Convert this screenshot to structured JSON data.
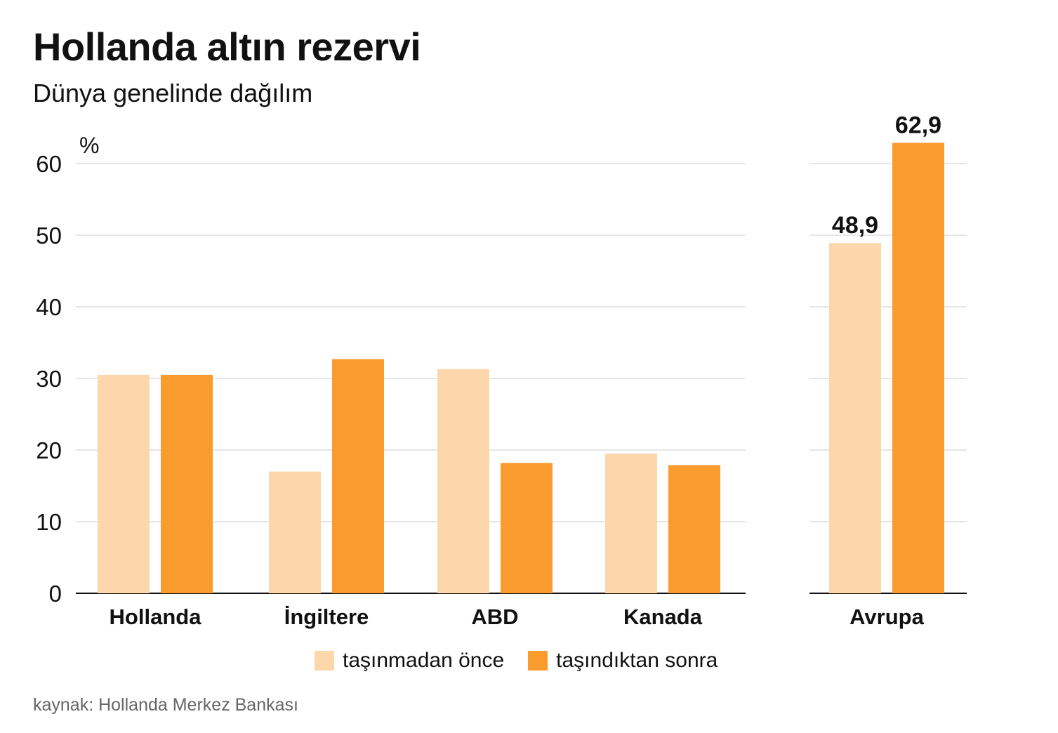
{
  "title": "Hollanda altın rezervi",
  "subtitle": "Dünya genelinde dağılım",
  "source": "kaynak: Hollanda Merkez Bankası",
  "colors": {
    "before": "#FDD6AC",
    "after": "#FA9B2E",
    "grid": "#dddddd",
    "axis": "#111111"
  },
  "chart_data": [
    {
      "type": "bar",
      "ylabel": "%",
      "ylim": [
        0,
        60
      ],
      "yticks": [
        0,
        10,
        20,
        30,
        40,
        50,
        60
      ],
      "grid": true,
      "legend_position": "bottom",
      "categories": [
        "Hollanda",
        "İngiltere",
        "ABD",
        "Kanada"
      ],
      "series": [
        {
          "name": "taşınmadan önce",
          "values": [
            30.5,
            17,
            31.3,
            19.5
          ]
        },
        {
          "name": "taşındıktan sonra",
          "values": [
            30.5,
            32.7,
            18.2,
            17.9
          ]
        }
      ]
    },
    {
      "type": "bar",
      "ylim": [
        0,
        60
      ],
      "grid": true,
      "categories": [
        "Avrupa"
      ],
      "series": [
        {
          "name": "taşınmadan önce",
          "values": [
            48.9
          ],
          "label": "48,9"
        },
        {
          "name": "taşındıktan sonra",
          "values": [
            62.9
          ],
          "label": "62,9"
        }
      ]
    }
  ]
}
